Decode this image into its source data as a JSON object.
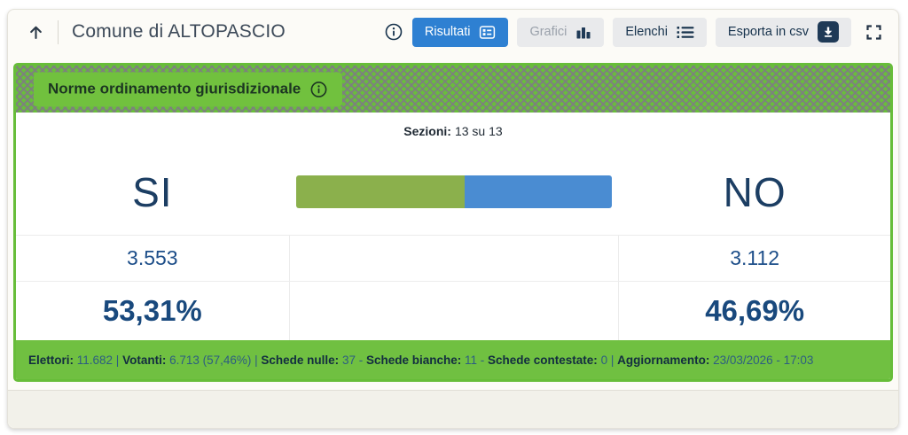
{
  "header": {
    "title": "Comune di ALTOPASCIO",
    "buttons": {
      "risultati": "Risultati",
      "grafici": "Grafici",
      "elenchi": "Elenchi",
      "esporta": "Esporta in csv"
    }
  },
  "referendum": {
    "question_title": "Norme ordinamento giurisdizionale",
    "sezioni_label": "Sezioni:",
    "sezioni_value": "13 su 13",
    "si": {
      "label": "SI",
      "votes": "3.553",
      "percent": "53,31%"
    },
    "no": {
      "label": "NO",
      "votes": "3.112",
      "percent": "46,69%"
    }
  },
  "chart_data": {
    "type": "bar",
    "categories": [
      "SI",
      "NO"
    ],
    "values": [
      53.31,
      46.69
    ],
    "colors": [
      "#8bb04c",
      "#4a8cd2"
    ],
    "title": "Norme ordinamento giurisdizionale"
  },
  "summary": {
    "parts": [
      {
        "label": "Elettori:",
        "value": " 11.682 | "
      },
      {
        "label": "Votanti:",
        "value": " 6.713 (57,46%) | "
      },
      {
        "label": "Schede nulle:",
        "value": " 37 - "
      },
      {
        "label": "Schede bianche:",
        "value": " 11 - "
      },
      {
        "label": "Schede contestate:",
        "value": " 0 | "
      },
      {
        "label": "Aggiornamento:",
        "value": " 23/03/2026 - 17:03"
      }
    ]
  },
  "colors": {
    "accent_green": "#67bd39",
    "accent_blue": "#2e80d2",
    "navy": "#16324c",
    "result_blue": "#1d4e89"
  }
}
